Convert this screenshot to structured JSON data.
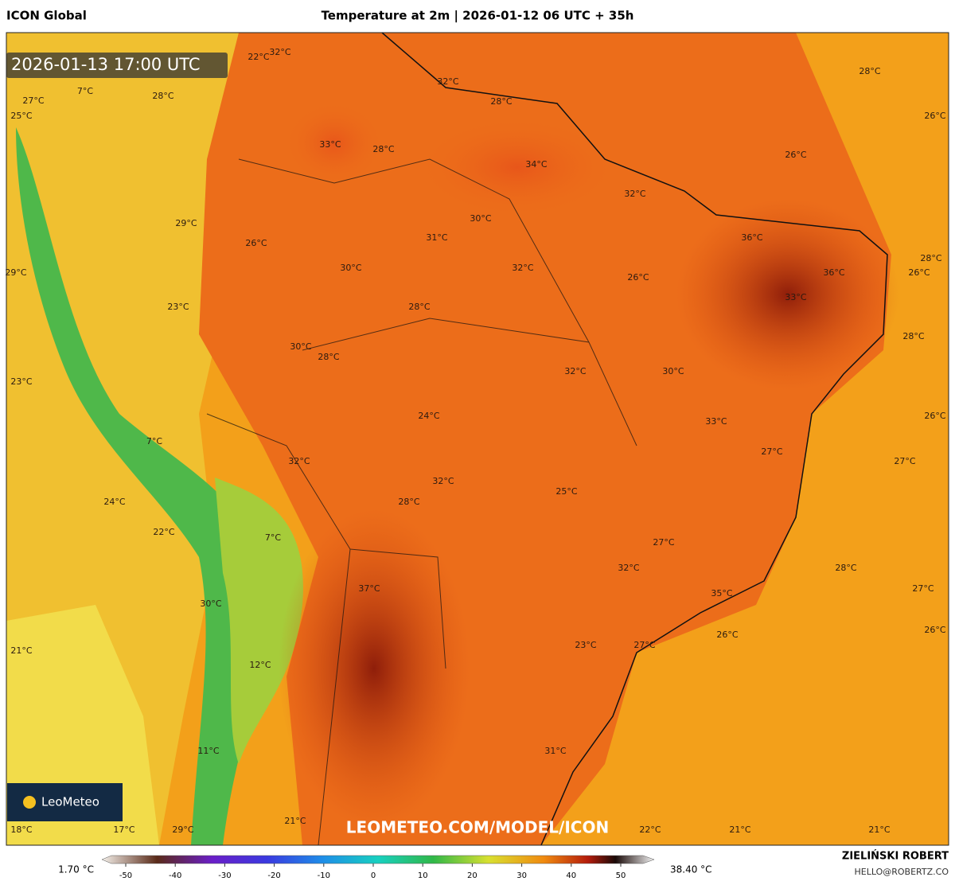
{
  "header": {
    "model": "ICON Global",
    "title": "Temperature at 2m | 2026-01-12 06 UTC + 35h"
  },
  "valid_time": "2026-01-13 17:00 UTC",
  "watermark": "LEOMETEO.COM/MODEL/ICON",
  "logo": "LeoMeteo",
  "map_labels": [
    "32°C",
    "22°C",
    "27°C",
    "7°C",
    "28°C",
    "25°C",
    "32°C",
    "28°C",
    "28°C",
    "26°C",
    "33°C",
    "28°C",
    "34°C",
    "26°C",
    "32°C",
    "29°C",
    "30°C",
    "31°C",
    "26°C",
    "36°C",
    "30°C",
    "32°C",
    "26°C",
    "36°C",
    "29°C",
    "28°C",
    "26°C",
    "33°C",
    "23°C",
    "28°C",
    "28°C",
    "30°C",
    "28°C",
    "32°C",
    "30°C",
    "23°C",
    "24°C",
    "33°C",
    "26°C",
    "7°C",
    "27°C",
    "27°C",
    "32°C",
    "32°C",
    "25°C",
    "24°C",
    "28°C",
    "22°C",
    "7°C",
    "27°C",
    "32°C",
    "28°C",
    "37°C",
    "35°C",
    "27°C",
    "30°C",
    "23°C",
    "27°C",
    "26°C",
    "26°C",
    "21°C",
    "12°C",
    "31°C",
    "11°C",
    "21°C",
    "18°C",
    "17°C",
    "29°C",
    "22°C",
    "21°C",
    "21°C"
  ],
  "colorbar": {
    "min_label": "1.70 °C",
    "max_label": "38.40 °C",
    "ticks": [
      -50,
      -40,
      -30,
      -20,
      -10,
      0,
      10,
      20,
      30,
      40,
      50
    ]
  },
  "footer": {
    "author": "ZIELIŃSKI ROBERT",
    "email": "HELLO@ROBERTZ.CO"
  }
}
